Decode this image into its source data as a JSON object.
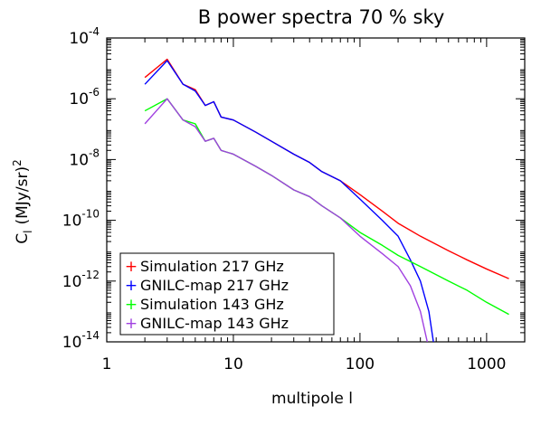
{
  "chart_data": {
    "type": "line",
    "title": "B power spectra 70 % sky",
    "xlabel": "multipole l",
    "ylabel": "C",
    "ylabel_subscript": "l",
    "ylabel_unit": "(MJy/sr)",
    "ylabel_superscript": "2",
    "xscale": "log",
    "yscale": "log",
    "xlim": [
      1,
      2000
    ],
    "ylim": [
      1e-14,
      0.0001
    ],
    "x_ticks": [
      1,
      10,
      100,
      1000
    ],
    "x_tick_labels": [
      "1",
      "10",
      "100",
      "1000"
    ],
    "y_ticks": [
      1e-14,
      1e-12,
      1e-10,
      1e-08,
      1e-06,
      0.0001
    ],
    "y_tick_mantissa": "10",
    "y_tick_exponents": [
      "-14",
      "-12",
      "-10",
      "-8",
      "-6",
      "-4"
    ],
    "legend_placement": "bottom-left",
    "legend_marker": "+",
    "grid": false,
    "series": [
      {
        "name": "Simulation 217 GHz",
        "color": "#ff0000",
        "points": [
          [
            2,
            5e-06
          ],
          [
            3,
            2e-05
          ],
          [
            4,
            3e-06
          ],
          [
            5,
            2e-06
          ],
          [
            6,
            6e-07
          ],
          [
            7,
            8e-07
          ],
          [
            8,
            2.5e-07
          ],
          [
            10,
            2e-07
          ],
          [
            15,
            8e-08
          ],
          [
            20,
            4e-08
          ],
          [
            30,
            1.5e-08
          ],
          [
            40,
            8e-09
          ],
          [
            50,
            4e-09
          ],
          [
            70,
            2e-09
          ],
          [
            100,
            7e-10
          ],
          [
            150,
            2e-10
          ],
          [
            200,
            8e-11
          ],
          [
            300,
            3e-11
          ],
          [
            500,
            1e-11
          ],
          [
            700,
            5e-12
          ],
          [
            1000,
            2.5e-12
          ],
          [
            1500,
            1.2e-12
          ]
        ]
      },
      {
        "name": "GNILC-map 217 GHz",
        "color": "#0000ff",
        "points": [
          [
            2,
            3e-06
          ],
          [
            3,
            1.8e-05
          ],
          [
            4,
            3e-06
          ],
          [
            5,
            1.8e-06
          ],
          [
            6,
            6e-07
          ],
          [
            7,
            8e-07
          ],
          [
            8,
            2.5e-07
          ],
          [
            10,
            2e-07
          ],
          [
            15,
            8e-08
          ],
          [
            20,
            4e-08
          ],
          [
            30,
            1.5e-08
          ],
          [
            40,
            8e-09
          ],
          [
            50,
            4e-09
          ],
          [
            70,
            2e-09
          ],
          [
            100,
            5e-10
          ],
          [
            150,
            1e-10
          ],
          [
            200,
            3e-11
          ],
          [
            250,
            5e-12
          ],
          [
            300,
            1e-12
          ],
          [
            350,
            1e-13
          ],
          [
            380,
            1e-14
          ]
        ]
      },
      {
        "name": "Simulation 143 GHz",
        "color": "#00ff00",
        "points": [
          [
            2,
            4e-07
          ],
          [
            3,
            1e-06
          ],
          [
            4,
            2e-07
          ],
          [
            5,
            1.5e-07
          ],
          [
            6,
            4e-08
          ],
          [
            7,
            5e-08
          ],
          [
            8,
            2e-08
          ],
          [
            10,
            1.5e-08
          ],
          [
            15,
            6e-09
          ],
          [
            20,
            3e-09
          ],
          [
            30,
            1e-09
          ],
          [
            40,
            6e-10
          ],
          [
            50,
            3e-10
          ],
          [
            70,
            1.2e-10
          ],
          [
            100,
            4e-11
          ],
          [
            150,
            1.5e-11
          ],
          [
            200,
            7e-12
          ],
          [
            300,
            3e-12
          ],
          [
            500,
            1e-12
          ],
          [
            700,
            5e-13
          ],
          [
            1000,
            2e-13
          ],
          [
            1500,
            8e-14
          ]
        ]
      },
      {
        "name": "GNILC-map 143 GHz",
        "color": "#a040e0",
        "points": [
          [
            2,
            1.5e-07
          ],
          [
            3,
            1e-06
          ],
          [
            4,
            2e-07
          ],
          [
            5,
            1.2e-07
          ],
          [
            6,
            4e-08
          ],
          [
            7,
            5e-08
          ],
          [
            8,
            2e-08
          ],
          [
            10,
            1.5e-08
          ],
          [
            15,
            6e-09
          ],
          [
            20,
            3e-09
          ],
          [
            30,
            1e-09
          ],
          [
            40,
            6e-10
          ],
          [
            50,
            3e-10
          ],
          [
            70,
            1.2e-10
          ],
          [
            100,
            3e-11
          ],
          [
            150,
            8e-12
          ],
          [
            200,
            3e-12
          ],
          [
            250,
            7e-13
          ],
          [
            300,
            1e-13
          ],
          [
            340,
            1e-14
          ]
        ]
      }
    ]
  }
}
